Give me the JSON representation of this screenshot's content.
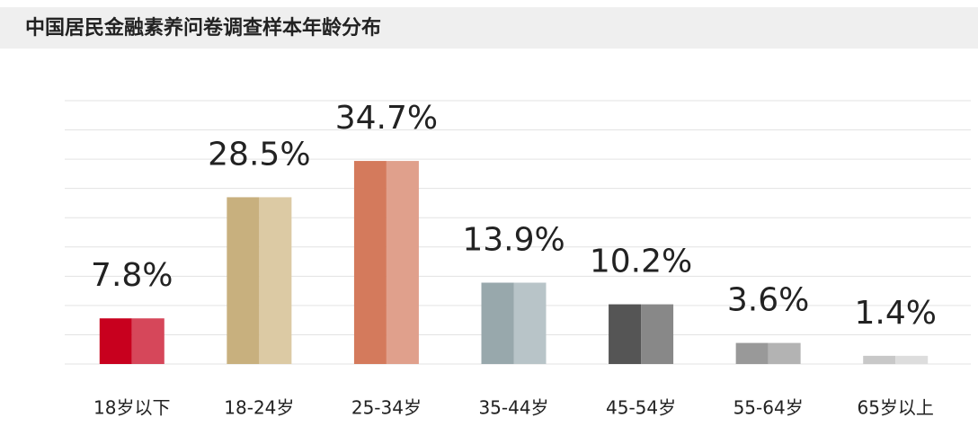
{
  "chart_data": {
    "type": "bar",
    "title": "中国居民金融素养问卷调查样本年龄分布",
    "categories": [
      "18岁以下",
      "18-24岁",
      "25-34岁",
      "35-44岁",
      "45-54岁",
      "55-64岁",
      "65岁以上"
    ],
    "values": [
      7.8,
      28.5,
      34.7,
      13.9,
      10.2,
      3.6,
      1.4
    ],
    "value_labels": [
      "7.8%",
      "28.5%",
      "34.7%",
      "13.9%",
      "10.2%",
      "3.6%",
      "1.4%"
    ],
    "colors": [
      [
        "#c8001e",
        "#d6475a"
      ],
      [
        "#c8b07e",
        "#dccaa4"
      ],
      [
        "#d47a5c",
        "#e0a08c"
      ],
      [
        "#98a8ac",
        "#b8c4c8"
      ],
      [
        "#555555",
        "#888888"
      ],
      [
        "#999999",
        "#b3b3b3"
      ],
      [
        "#c8c8c8",
        "#dddddd"
      ]
    ],
    "ylim": [
      0,
      45
    ],
    "yticks": [
      0,
      5,
      10,
      15,
      20,
      25,
      30,
      35,
      40,
      45
    ],
    "grid": true
  }
}
